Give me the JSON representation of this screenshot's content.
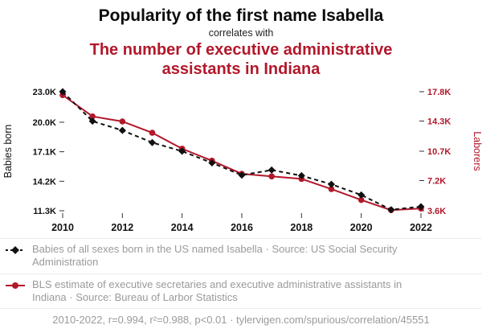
{
  "header": {
    "title": "Popularity of the first name Isabella",
    "subtitle": "correlates with",
    "secondary_title": "The number of executive administrative assistants in Indiana"
  },
  "colors": {
    "red": "#b2182b",
    "black": "#111111",
    "muted": "#9a9a9a"
  },
  "chart_data": {
    "type": "line",
    "x": [
      2010,
      2011,
      2012,
      2013,
      2014,
      2015,
      2016,
      2017,
      2018,
      2019,
      2020,
      2021,
      2022
    ],
    "x_tick_values": [
      2010,
      2012,
      2014,
      2016,
      2018,
      2020,
      2022
    ],
    "x_tick_labels": [
      "2010",
      "2012",
      "2014",
      "2016",
      "2018",
      "2020",
      "2022"
    ],
    "left_axis": {
      "label": "Babies born",
      "min": 11300,
      "max": 23000,
      "tick_values": [
        23000,
        20000,
        17100,
        14200,
        11300
      ],
      "tick_labels": [
        "23.0K",
        "20.0K",
        "17.1K",
        "14.2K",
        "11.3K"
      ]
    },
    "right_axis": {
      "label": "Laborers",
      "min": 3600,
      "max": 17800,
      "tick_values": [
        17800,
        14300,
        10700,
        7200,
        3600
      ],
      "tick_labels": [
        "17.8K",
        "14.3K",
        "10.7K",
        "7.2K",
        "3.6K"
      ]
    },
    "grid": false,
    "series": [
      {
        "name": "Babies of all sexes born in the US named Isabella",
        "axis": "left",
        "color": "#111111",
        "line_style": "dashed",
        "marker": "diamond",
        "values": [
          23000,
          20100,
          19200,
          18000,
          17150,
          16000,
          14800,
          15300,
          14750,
          13900,
          12850,
          11400,
          11700
        ]
      },
      {
        "name": "BLS estimate of executive secretaries and executive administrative assistants in Indiana",
        "axis": "right",
        "color": "#b2182b",
        "line_style": "solid",
        "marker": "circle",
        "values": [
          17400,
          14850,
          14250,
          12900,
          11000,
          9570,
          8000,
          7700,
          7400,
          6180,
          4890,
          3680,
          3870
        ]
      }
    ]
  },
  "legend": {
    "items": [
      {
        "label": "Babies of all sexes born in the US named Isabella · Source: US Social Security Administration",
        "marker": "black-diamond-dashed"
      },
      {
        "label": "BLS estimate of executive secretaries and executive administrative assistants in Indiana · Source: Bureau of Larbor Statistics",
        "marker": "red-circle-solid"
      }
    ]
  },
  "footer": {
    "text": "2010-2022, r=0.994, r²=0.988, p<0.01 · tylervigen.com/spurious/correlation/45551"
  }
}
